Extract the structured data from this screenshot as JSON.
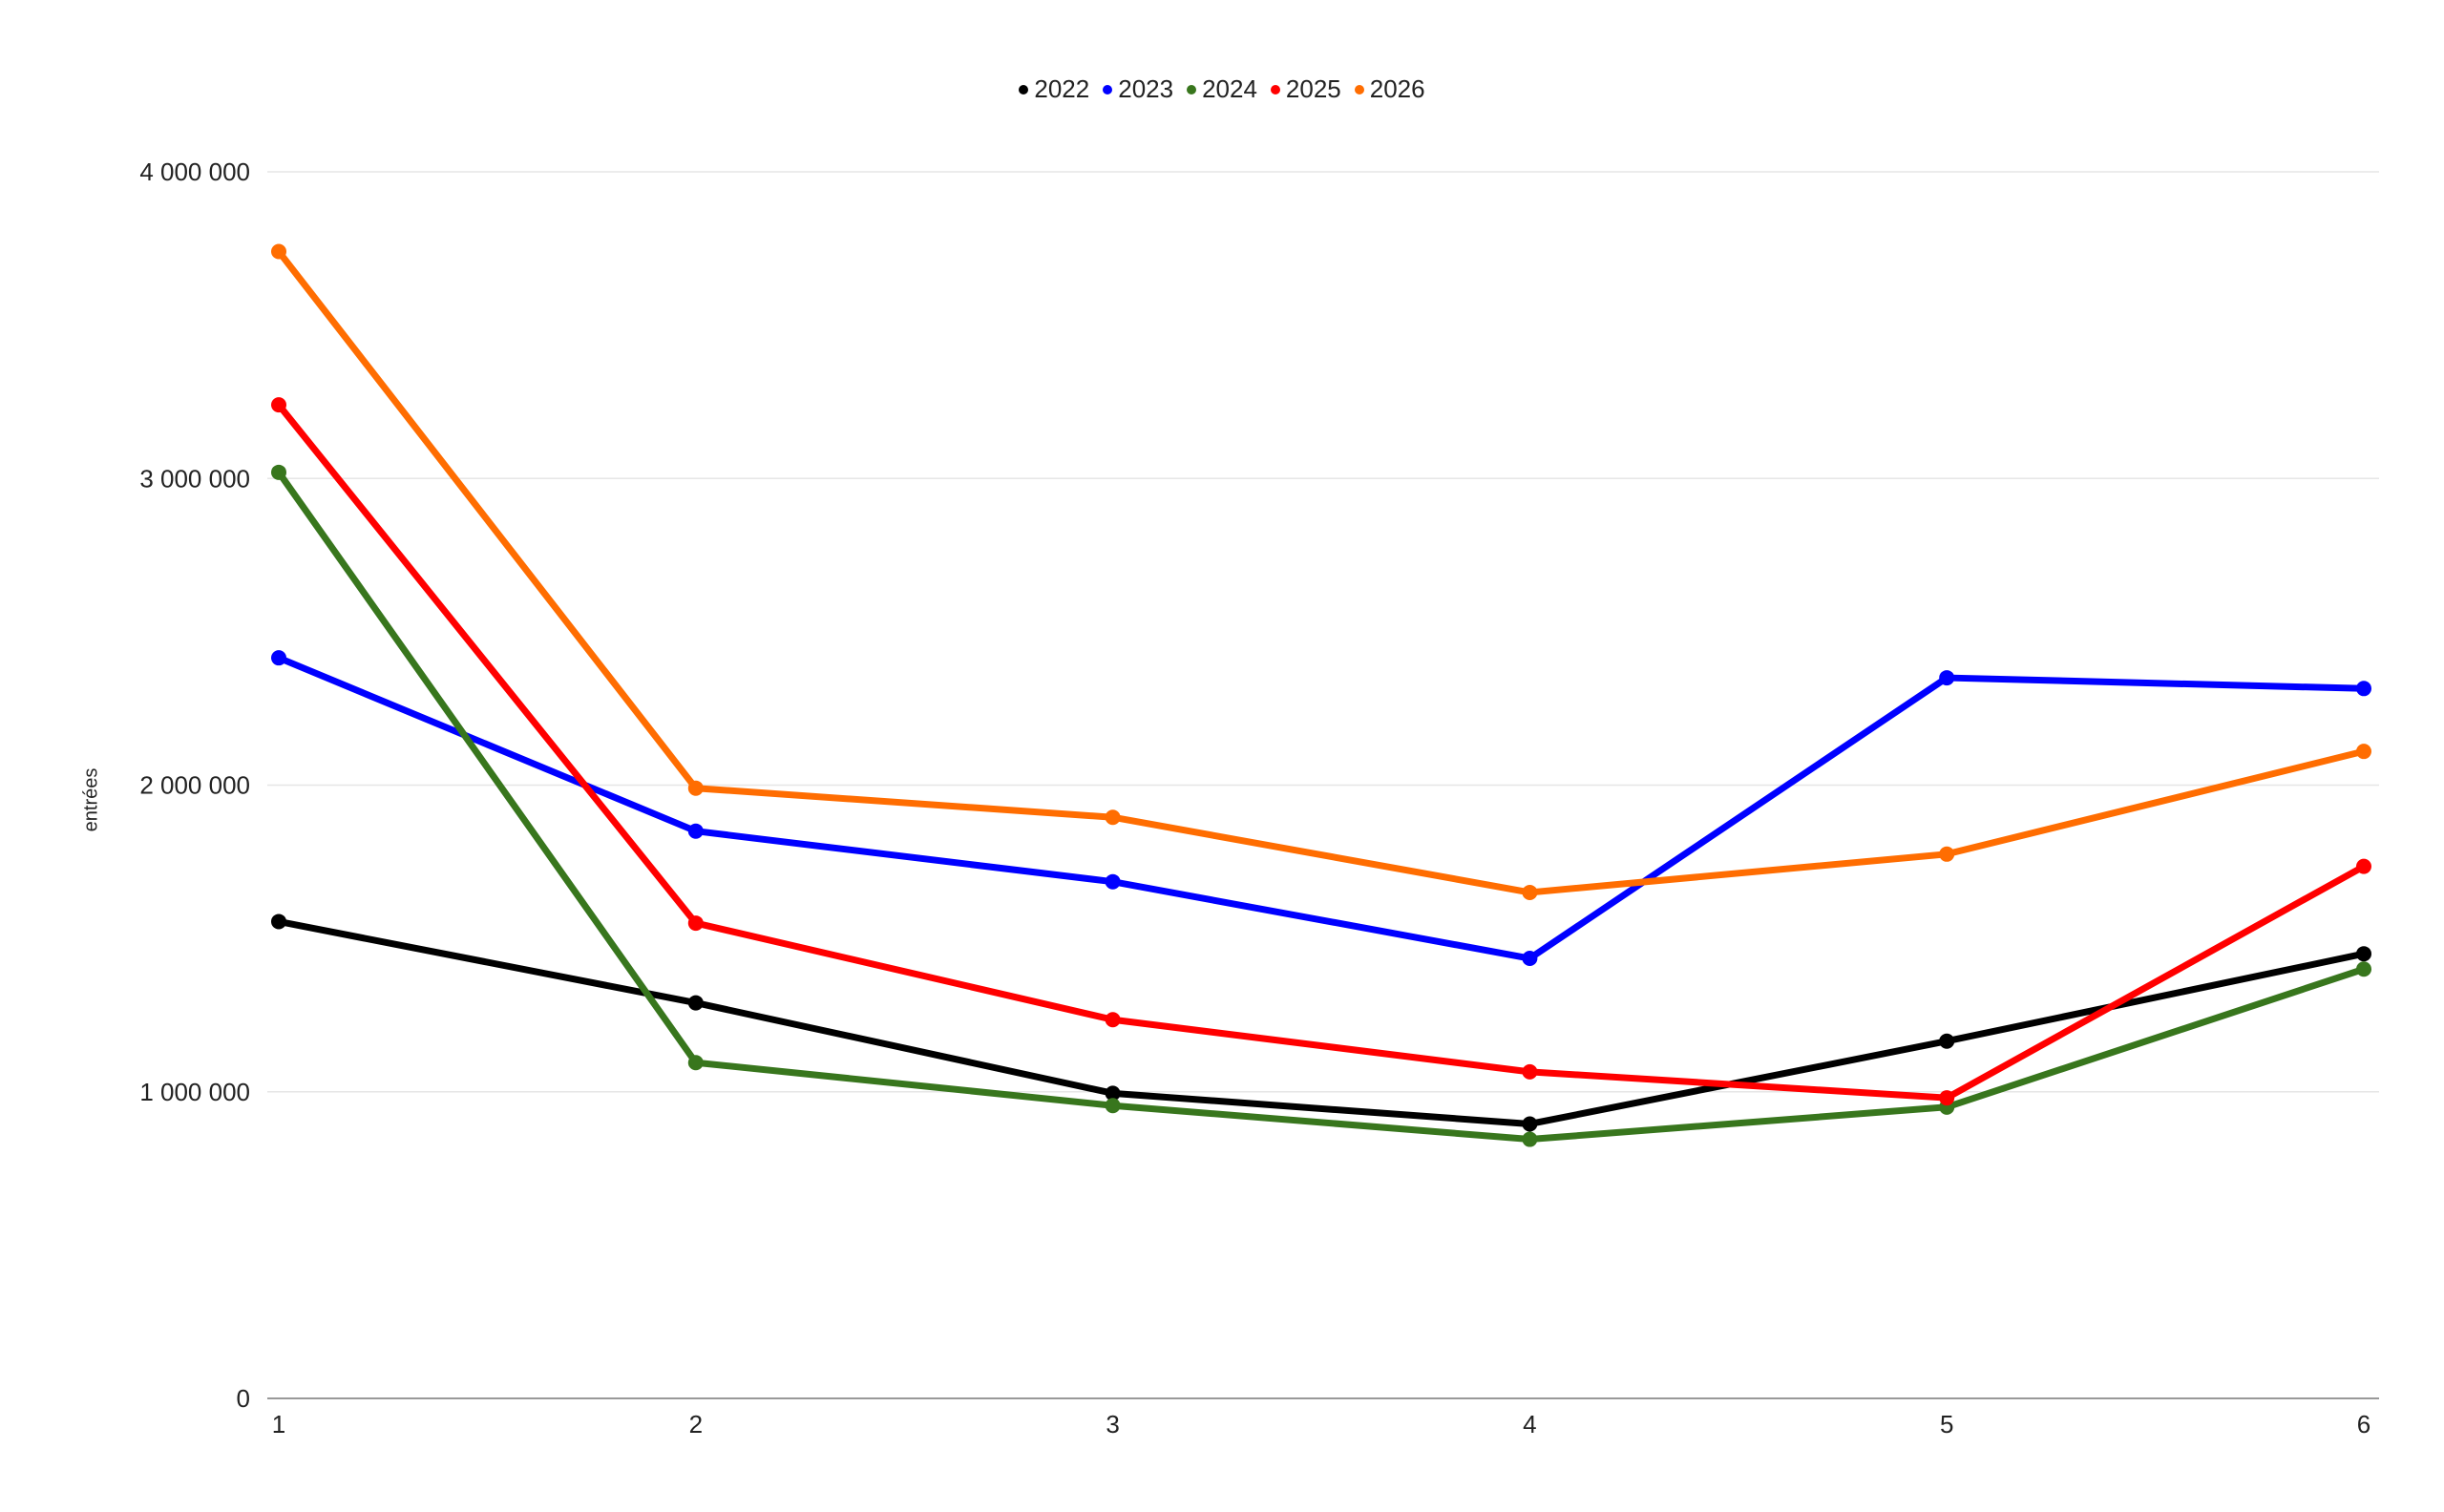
{
  "chart_data": {
    "type": "line",
    "title": "",
    "xlabel": "",
    "ylabel": "entrées",
    "x": [
      1,
      2,
      3,
      4,
      5,
      6
    ],
    "x_tick_labels": [
      "1",
      "2",
      "3",
      "4",
      "5",
      "6"
    ],
    "ylim": [
      0,
      4000000
    ],
    "y_ticks": [
      0,
      1000000,
      2000000,
      3000000,
      4000000
    ],
    "y_tick_labels": [
      "0",
      "1 000 000",
      "2 000 000",
      "3 000 000",
      "4 000 000"
    ],
    "grid": true,
    "legend_position": "top-center",
    "series": [
      {
        "name": "2022",
        "color": "#000000",
        "values": [
          1555000,
          1290000,
          995000,
          895000,
          1165000,
          1450000
        ]
      },
      {
        "name": "2023",
        "color": "#0000ff",
        "values": [
          2415000,
          1850000,
          1685000,
          1435000,
          2350000,
          2315000
        ]
      },
      {
        "name": "2024",
        "color": "#38761d",
        "values": [
          3020000,
          1095000,
          955000,
          845000,
          950000,
          1400000
        ]
      },
      {
        "name": "2025",
        "color": "#ff0000",
        "values": [
          3240000,
          1550000,
          1235000,
          1065000,
          980000,
          1735000
        ]
      },
      {
        "name": "2026",
        "color": "#ff6d01",
        "values": [
          3740000,
          1990000,
          1895000,
          1650000,
          1775000,
          2110000
        ]
      }
    ]
  }
}
